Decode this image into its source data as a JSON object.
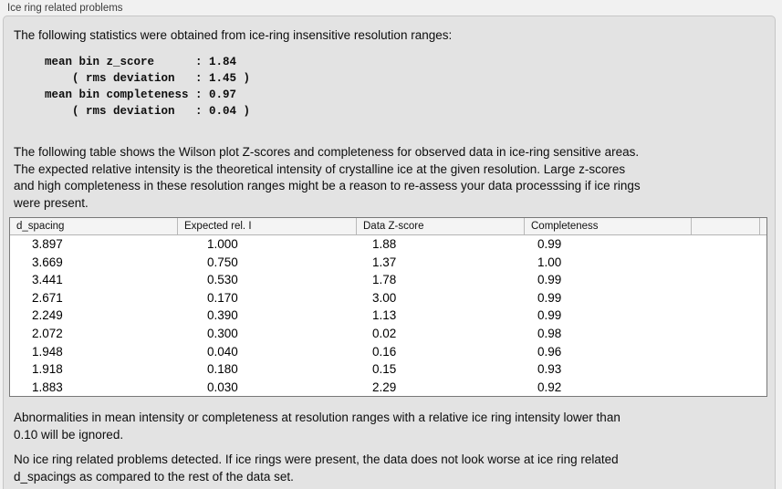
{
  "panel": {
    "title": "Ice ring related problems"
  },
  "intro": "The following statistics were obtained from ice-ring insensitive resolution ranges:",
  "stats_block": "mean bin z_score      : 1.84\n    ( rms deviation   : 1.45 )\nmean bin completeness : 0.97\n    ( rms deviation   : 0.04 )",
  "stats": {
    "mean_bin_z_score": "1.84",
    "z_score_rms_deviation": "1.45",
    "mean_bin_completeness": "0.97",
    "completeness_rms_deviation": "0.04"
  },
  "description": "The following table shows the Wilson plot Z-scores and completeness for observed data in ice-ring sensitive areas.\nThe expected relative intensity is the theoretical intensity of crystalline ice at the given resolution. Large z-scores\nand high completeness in these resolution ranges might be a reason to re-assess your data processsing if ice rings\nwere present.",
  "table": {
    "headers": [
      "d_spacing",
      "Expected rel. I",
      "Data Z-score",
      "Completeness"
    ],
    "rows": [
      [
        "3.897",
        "1.000",
        "1.88",
        "0.99"
      ],
      [
        "3.669",
        "0.750",
        "1.37",
        "1.00"
      ],
      [
        "3.441",
        "0.530",
        "1.78",
        "0.99"
      ],
      [
        "2.671",
        "0.170",
        "3.00",
        "0.99"
      ],
      [
        "2.249",
        "0.390",
        "1.13",
        "0.99"
      ],
      [
        "2.072",
        "0.300",
        "0.02",
        "0.98"
      ],
      [
        "1.948",
        "0.040",
        "0.16",
        "0.96"
      ],
      [
        "1.918",
        "0.180",
        "0.15",
        "0.93"
      ],
      [
        "1.883",
        "0.030",
        "2.29",
        "0.92"
      ]
    ]
  },
  "ignore_note": "Abnormalities in mean intensity or completeness at resolution ranges with a relative ice ring intensity lower than\n0.10 will be ignored.",
  "conclusion": "No ice ring related problems detected. If ice rings were present, the data does not look worse at ice ring related\nd_spacings as compared to the rest of the data set.",
  "colors": {
    "window_bg": "#f1f1f1",
    "panel_bg": "#e3e3e3",
    "panel_border": "#c6c6c6",
    "table_border": "#787878",
    "table_header_bg": "#f4f4f4",
    "table_body_bg": "#ffffff",
    "text": "#0d0d0d"
  }
}
